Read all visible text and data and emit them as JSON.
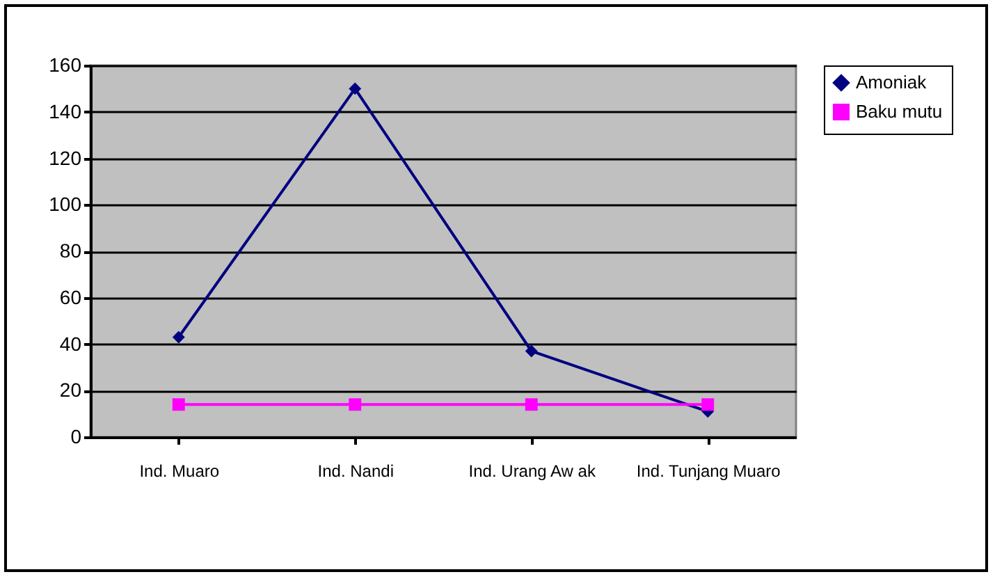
{
  "chart_data": {
    "type": "line",
    "categories": [
      "Ind. Muaro",
      "Ind. Nandi",
      "Ind. Urang Aw ak",
      "Ind. Tunjang Muaro"
    ],
    "series": [
      {
        "name": "Amoniak",
        "color": "#000080",
        "marker": "diamond",
        "values": [
          43,
          150,
          37,
          11
        ]
      },
      {
        "name": "Baku mutu",
        "color": "#ff00ff",
        "marker": "square",
        "values": [
          14,
          14,
          14,
          14
        ]
      }
    ],
    "ylim": [
      0,
      160
    ],
    "yticks": [
      0,
      20,
      40,
      60,
      80,
      100,
      120,
      140,
      160
    ],
    "grid": "y",
    "legend": "right"
  }
}
